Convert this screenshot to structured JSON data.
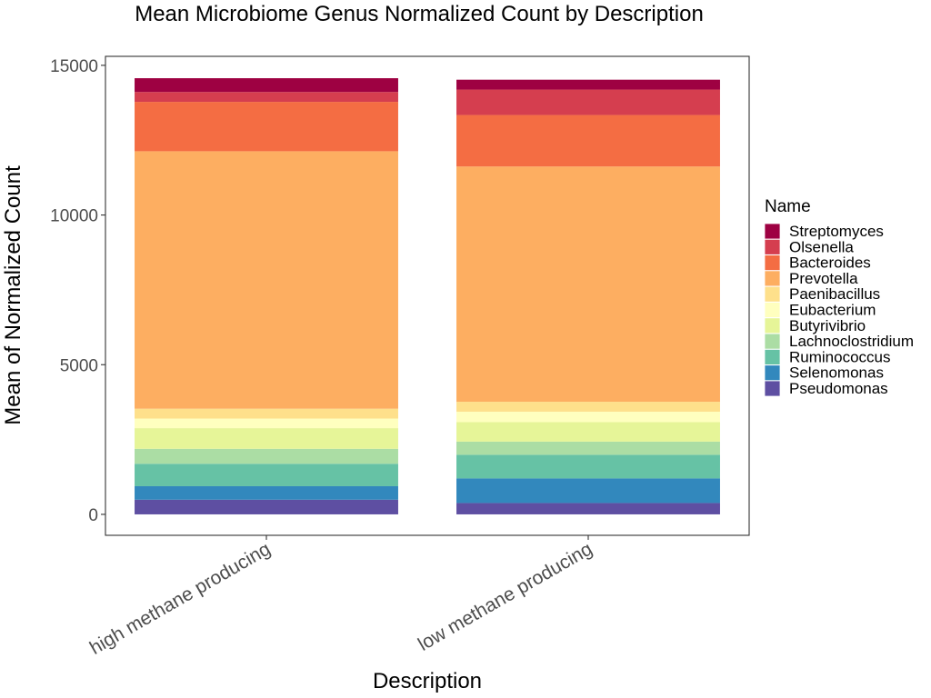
{
  "chart_data": {
    "type": "bar",
    "stacked": true,
    "title": "Mean Microbiome Genus Normalized Count by Description",
    "xlabel": "Description",
    "ylabel": "Mean of Normalized Count",
    "ylim": [
      -700,
      15300
    ],
    "yticks": [
      0,
      5000,
      10000,
      15000
    ],
    "ytick_labels": [
      "0",
      "5000",
      "10000",
      "15000"
    ],
    "grid": false,
    "legend_position": "right",
    "legend_title": "Name",
    "categories": [
      "high methane producing",
      "low methane producing"
    ],
    "series": [
      {
        "name": "Streptomyces",
        "color": "#9E0142",
        "values": [
          460,
          330
        ]
      },
      {
        "name": "Olsenella",
        "color": "#D53E4F",
        "values": [
          330,
          850
        ]
      },
      {
        "name": "Bacteroides",
        "color": "#F46D43",
        "values": [
          1650,
          1720
        ]
      },
      {
        "name": "Prevotella",
        "color": "#FDAE61",
        "values": [
          8600,
          7860
        ]
      },
      {
        "name": "Paenibacillus",
        "color": "#FEE08B",
        "values": [
          330,
          330
        ]
      },
      {
        "name": "Eubacterium",
        "color": "#FFFFBF",
        "values": [
          320,
          350
        ]
      },
      {
        "name": "Butyrivibrio",
        "color": "#E6F598",
        "values": [
          690,
          650
        ]
      },
      {
        "name": "Lachnoclostridium",
        "color": "#ABDDA4",
        "values": [
          500,
          440
        ]
      },
      {
        "name": "Ruminococcus",
        "color": "#66C2A5",
        "values": [
          750,
          790
        ]
      },
      {
        "name": "Selenomonas",
        "color": "#3288BD",
        "values": [
          450,
          820
        ]
      },
      {
        "name": "Pseudomonas",
        "color": "#5E4FA2",
        "values": [
          490,
          380
        ]
      }
    ]
  }
}
